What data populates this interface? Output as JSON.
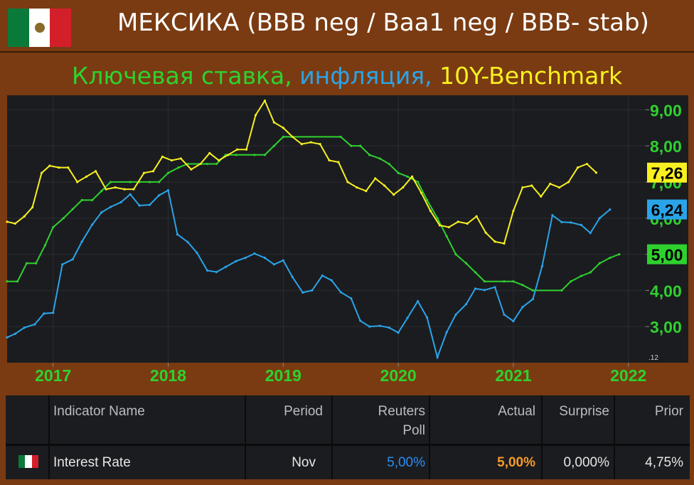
{
  "header": {
    "title": "МЕКСИКА (BBB neg / Baa1 neg / BBB- stab)",
    "flag_icon": "mexico-flag-icon"
  },
  "subtitle": {
    "part1": "Ключевая ставка,",
    "part2": "инфляция,",
    "part3": "10Y-Benchmark",
    "colors": {
      "part1": "#2fd12f",
      "part2": "#2aa4e8",
      "part3": "#f8f020"
    }
  },
  "chart_data": {
    "type": "line",
    "x_ticks": [
      "2017",
      "2018",
      "2019",
      "2020",
      "2021",
      "2022"
    ],
    "y_ticks": [
      "3,00",
      "4,00",
      "5,00",
      "6,00",
      "7,00",
      "8,00",
      "9,00"
    ],
    "ylim": [
      2.0,
      9.4
    ],
    "xlim": [
      2016.6,
      2022.15
    ],
    "corner_label": ".12",
    "series": [
      {
        "key": "rate",
        "color": "#2fd12f",
        "last_label": "5,00",
        "points": [
          [
            2016.6,
            4.25
          ],
          [
            2016.69,
            4.25
          ],
          [
            2016.77,
            4.75
          ],
          [
            2016.85,
            4.75
          ],
          [
            2016.93,
            5.25
          ],
          [
            2017.0,
            5.75
          ],
          [
            2017.09,
            6.0
          ],
          [
            2017.17,
            6.25
          ],
          [
            2017.25,
            6.5
          ],
          [
            2017.34,
            6.5
          ],
          [
            2017.42,
            6.75
          ],
          [
            2017.5,
            7.0
          ],
          [
            2017.67,
            7.0
          ],
          [
            2017.75,
            7.0
          ],
          [
            2017.84,
            7.0
          ],
          [
            2017.92,
            7.0
          ],
          [
            2018.0,
            7.25
          ],
          [
            2018.09,
            7.4
          ],
          [
            2018.17,
            7.5
          ],
          [
            2018.34,
            7.5
          ],
          [
            2018.42,
            7.5
          ],
          [
            2018.5,
            7.75
          ],
          [
            2018.59,
            7.75
          ],
          [
            2018.75,
            7.75
          ],
          [
            2018.84,
            7.75
          ],
          [
            2018.92,
            8.0
          ],
          [
            2019.0,
            8.25
          ],
          [
            2019.5,
            8.25
          ],
          [
            2019.59,
            8.0
          ],
          [
            2019.67,
            8.0
          ],
          [
            2019.75,
            7.75
          ],
          [
            2019.84,
            7.65
          ],
          [
            2019.92,
            7.5
          ],
          [
            2020.0,
            7.25
          ],
          [
            2020.08,
            7.15
          ],
          [
            2020.17,
            7.0
          ],
          [
            2020.25,
            6.5
          ],
          [
            2020.34,
            6.0
          ],
          [
            2020.42,
            5.5
          ],
          [
            2020.5,
            5.0
          ],
          [
            2020.59,
            4.75
          ],
          [
            2020.67,
            4.5
          ],
          [
            2020.75,
            4.25
          ],
          [
            2020.92,
            4.25
          ],
          [
            2021.0,
            4.25
          ],
          [
            2021.08,
            4.15
          ],
          [
            2021.17,
            4.0
          ],
          [
            2021.42,
            4.0
          ],
          [
            2021.5,
            4.25
          ],
          [
            2021.59,
            4.4
          ],
          [
            2021.67,
            4.5
          ],
          [
            2021.75,
            4.75
          ],
          [
            2021.84,
            4.9
          ],
          [
            2021.92,
            5.0
          ]
        ]
      },
      {
        "key": "inflation",
        "color": "#2aa4e8",
        "last_label": "6,24",
        "points": [
          [
            2016.6,
            2.7
          ],
          [
            2016.67,
            2.8
          ],
          [
            2016.75,
            2.97
          ],
          [
            2016.84,
            3.06
          ],
          [
            2016.92,
            3.36
          ],
          [
            2017.0,
            3.38
          ],
          [
            2017.08,
            4.72
          ],
          [
            2017.17,
            4.86
          ],
          [
            2017.25,
            5.35
          ],
          [
            2017.34,
            5.82
          ],
          [
            2017.42,
            6.16
          ],
          [
            2017.5,
            6.31
          ],
          [
            2017.59,
            6.44
          ],
          [
            2017.67,
            6.66
          ],
          [
            2017.75,
            6.35
          ],
          [
            2017.84,
            6.37
          ],
          [
            2017.92,
            6.63
          ],
          [
            2018.0,
            6.77
          ],
          [
            2018.08,
            5.55
          ],
          [
            2018.17,
            5.34
          ],
          [
            2018.25,
            5.04
          ],
          [
            2018.34,
            4.55
          ],
          [
            2018.42,
            4.51
          ],
          [
            2018.5,
            4.65
          ],
          [
            2018.59,
            4.81
          ],
          [
            2018.67,
            4.9
          ],
          [
            2018.75,
            5.02
          ],
          [
            2018.84,
            4.9
          ],
          [
            2018.92,
            4.72
          ],
          [
            2019.0,
            4.83
          ],
          [
            2019.08,
            4.37
          ],
          [
            2019.17,
            3.94
          ],
          [
            2019.25,
            4.0
          ],
          [
            2019.34,
            4.41
          ],
          [
            2019.42,
            4.28
          ],
          [
            2019.5,
            3.95
          ],
          [
            2019.59,
            3.78
          ],
          [
            2019.67,
            3.16
          ],
          [
            2019.75,
            3.0
          ],
          [
            2019.84,
            3.02
          ],
          [
            2019.92,
            2.97
          ],
          [
            2020.0,
            2.83
          ],
          [
            2020.08,
            3.24
          ],
          [
            2020.17,
            3.7
          ],
          [
            2020.25,
            3.25
          ],
          [
            2020.34,
            2.15
          ],
          [
            2020.42,
            2.84
          ],
          [
            2020.5,
            3.33
          ],
          [
            2020.59,
            3.62
          ],
          [
            2020.67,
            4.05
          ],
          [
            2020.75,
            4.01
          ],
          [
            2020.84,
            4.09
          ],
          [
            2020.92,
            3.33
          ],
          [
            2021.0,
            3.15
          ],
          [
            2021.08,
            3.54
          ],
          [
            2021.17,
            3.76
          ],
          [
            2021.25,
            4.67
          ],
          [
            2021.34,
            6.08
          ],
          [
            2021.42,
            5.89
          ],
          [
            2021.5,
            5.88
          ],
          [
            2021.59,
            5.81
          ],
          [
            2021.67,
            5.59
          ],
          [
            2021.75,
            6.0
          ],
          [
            2021.84,
            6.24
          ]
        ]
      },
      {
        "key": "bond10y",
        "color": "#f8f020",
        "last_label": "7,26",
        "points": [
          [
            2016.6,
            5.9
          ],
          [
            2016.67,
            5.85
          ],
          [
            2016.75,
            6.05
          ],
          [
            2016.82,
            6.3
          ],
          [
            2016.9,
            7.25
          ],
          [
            2016.97,
            7.45
          ],
          [
            2017.05,
            7.4
          ],
          [
            2017.13,
            7.4
          ],
          [
            2017.21,
            7.0
          ],
          [
            2017.29,
            7.15
          ],
          [
            2017.37,
            7.3
          ],
          [
            2017.46,
            6.8
          ],
          [
            2017.54,
            6.85
          ],
          [
            2017.62,
            6.8
          ],
          [
            2017.7,
            6.8
          ],
          [
            2017.79,
            7.25
          ],
          [
            2017.87,
            7.3
          ],
          [
            2017.95,
            7.7
          ],
          [
            2018.03,
            7.6
          ],
          [
            2018.11,
            7.65
          ],
          [
            2018.2,
            7.35
          ],
          [
            2018.28,
            7.5
          ],
          [
            2018.36,
            7.8
          ],
          [
            2018.44,
            7.6
          ],
          [
            2018.52,
            7.75
          ],
          [
            2018.6,
            7.9
          ],
          [
            2018.68,
            7.9
          ],
          [
            2018.76,
            8.85
          ],
          [
            2018.84,
            9.25
          ],
          [
            2018.92,
            8.65
          ],
          [
            2019.0,
            8.5
          ],
          [
            2019.08,
            8.25
          ],
          [
            2019.16,
            8.05
          ],
          [
            2019.24,
            8.1
          ],
          [
            2019.32,
            8.05
          ],
          [
            2019.4,
            7.6
          ],
          [
            2019.48,
            7.55
          ],
          [
            2019.56,
            7.0
          ],
          [
            2019.64,
            6.85
          ],
          [
            2019.72,
            6.75
          ],
          [
            2019.8,
            7.1
          ],
          [
            2019.88,
            6.9
          ],
          [
            2019.96,
            6.65
          ],
          [
            2020.04,
            6.85
          ],
          [
            2020.12,
            7.15
          ],
          [
            2020.2,
            6.7
          ],
          [
            2020.28,
            6.2
          ],
          [
            2020.36,
            5.8
          ],
          [
            2020.44,
            5.75
          ],
          [
            2020.52,
            5.9
          ],
          [
            2020.6,
            5.85
          ],
          [
            2020.68,
            6.05
          ],
          [
            2020.76,
            5.6
          ],
          [
            2020.84,
            5.35
          ],
          [
            2020.92,
            5.3
          ],
          [
            2021.0,
            6.2
          ],
          [
            2021.08,
            6.85
          ],
          [
            2021.16,
            6.9
          ],
          [
            2021.24,
            6.6
          ],
          [
            2021.32,
            6.95
          ],
          [
            2021.4,
            6.85
          ],
          [
            2021.48,
            7.0
          ],
          [
            2021.56,
            7.4
          ],
          [
            2021.64,
            7.5
          ],
          [
            2021.72,
            7.26
          ]
        ]
      }
    ]
  },
  "table": {
    "headers": {
      "indicator": "Indicator Name",
      "period": "Period",
      "poll_line1": "Reuters",
      "poll_line2": "Poll",
      "actual": "Actual",
      "surprise": "Surprise",
      "prior": "Prior"
    },
    "row": {
      "flag_icon": "mexico-flag-icon",
      "indicator": "Interest Rate",
      "period": "Nov",
      "poll": "5,00%",
      "actual": "5,00%",
      "surprise": "0,000%",
      "prior": "4,75%"
    },
    "colors": {
      "poll": "#2b8ef0",
      "actual": "#f59a2a"
    }
  }
}
